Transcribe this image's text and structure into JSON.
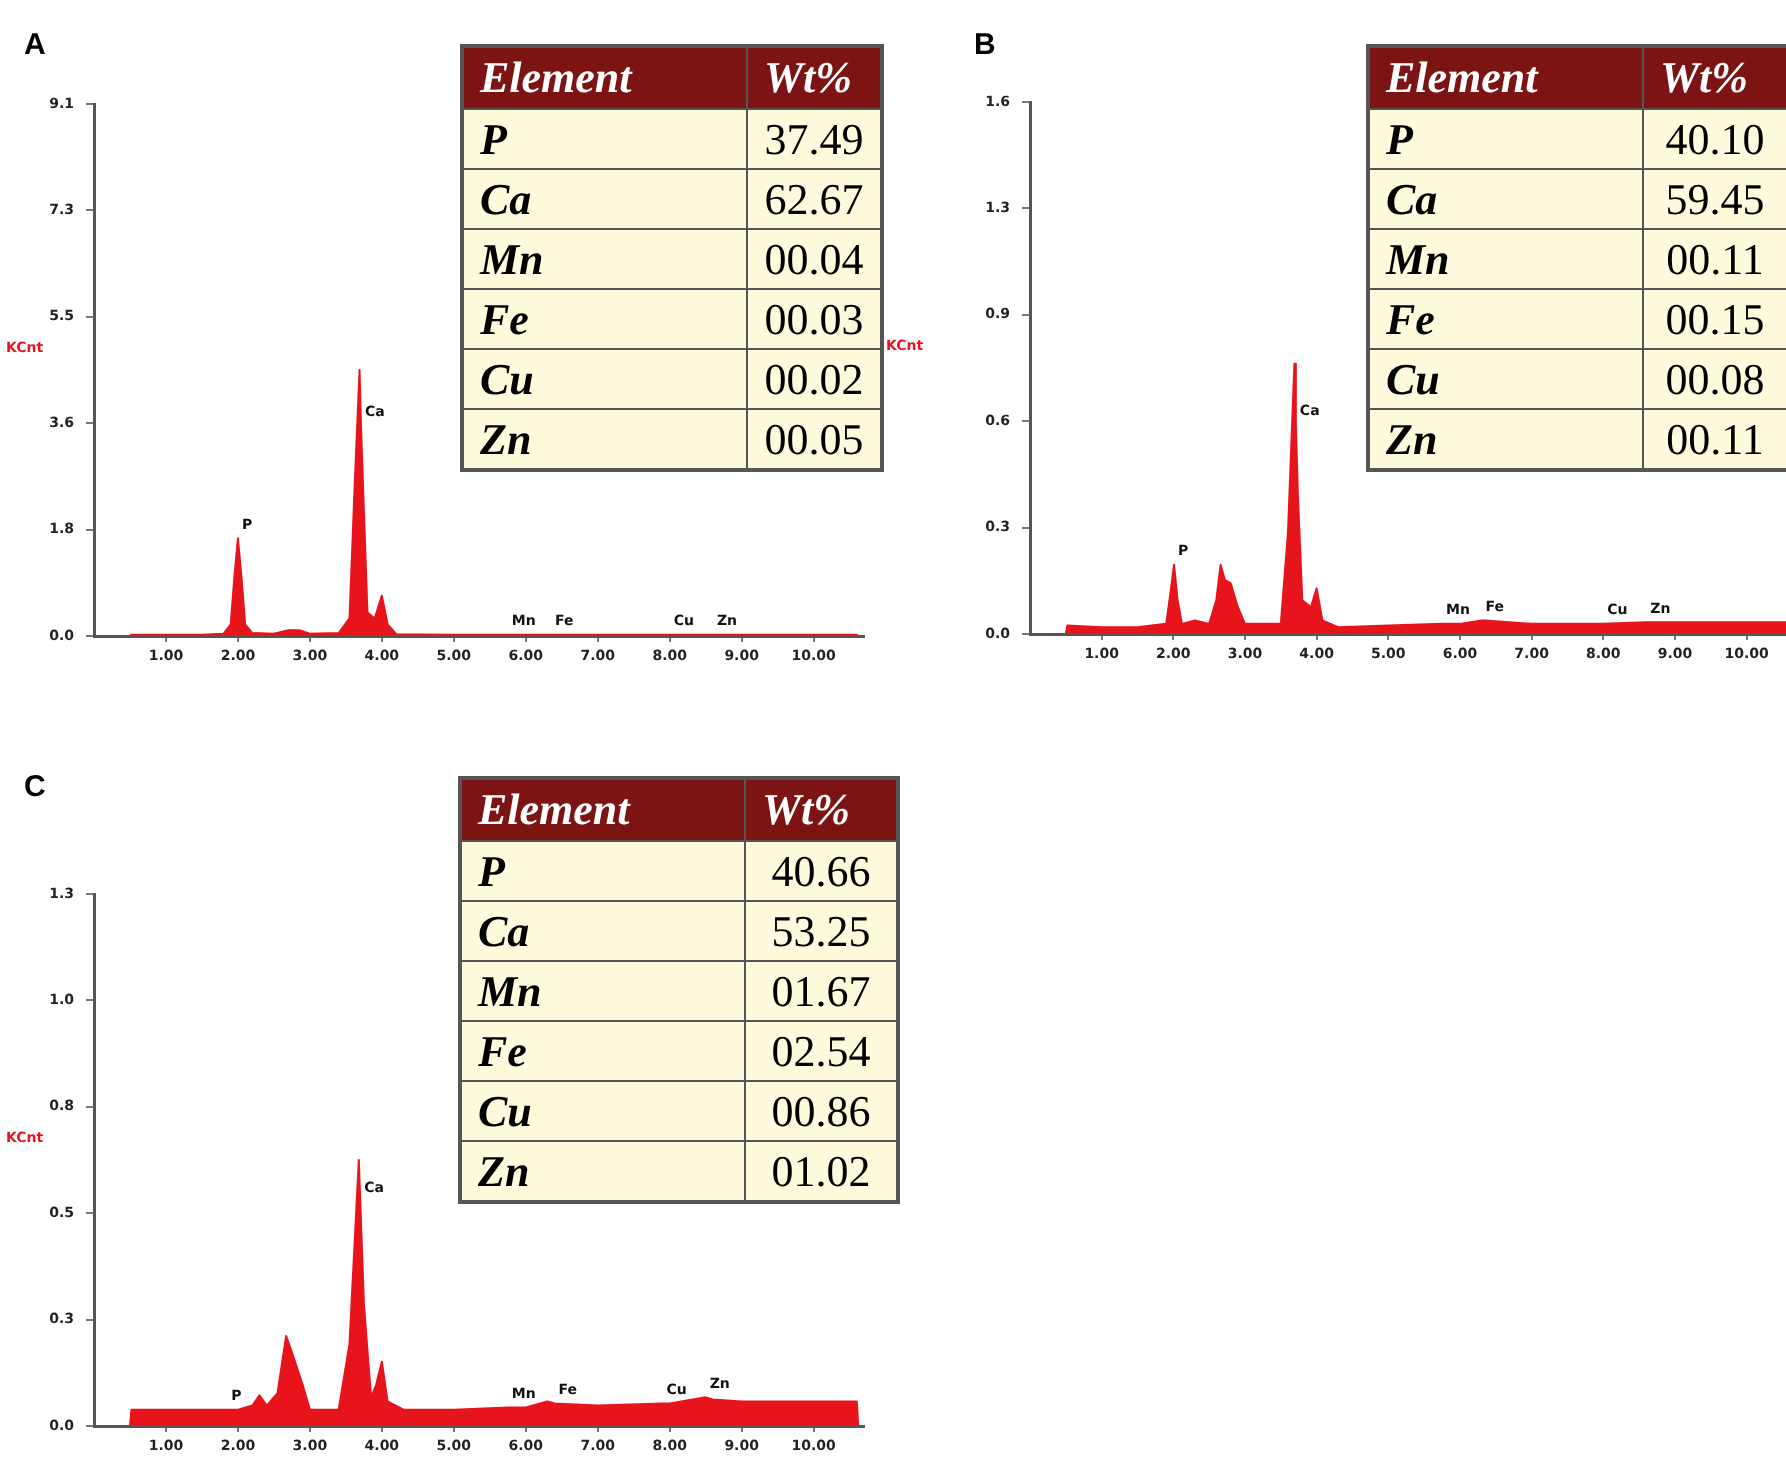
{
  "chart_data": [
    {
      "type": "area",
      "title": "A",
      "ylabel": "KCnt",
      "xlim": [
        0,
        10.7
      ],
      "ylim": [
        0,
        9.1
      ],
      "xticks": [
        {
          "value": 1,
          "label": "1.00"
        },
        {
          "value": 2,
          "label": "2.00"
        },
        {
          "value": 3,
          "label": "3.00"
        },
        {
          "value": 4,
          "label": "4.00"
        },
        {
          "value": 5,
          "label": "5.00"
        },
        {
          "value": 6,
          "label": "6.00"
        },
        {
          "value": 7,
          "label": "7.00"
        },
        {
          "value": 8,
          "label": "8.00"
        },
        {
          "value": 9,
          "label": "9.00"
        },
        {
          "value": 10,
          "label": "10.00"
        }
      ],
      "yticks": [
        {
          "value": 0,
          "label": "0.0"
        },
        {
          "value": 1.82,
          "label": "1.8"
        },
        {
          "value": 3.64,
          "label": "3.6"
        },
        {
          "value": 5.46,
          "label": "5.5"
        },
        {
          "value": 7.28,
          "label": "7.3"
        },
        {
          "value": 9.1,
          "label": "9.1"
        }
      ],
      "series": [
        {
          "color": "#e8141c",
          "x": [
            0.5,
            0.52,
            1.0,
            1.5,
            1.8,
            1.9,
            1.95,
            2.0,
            2.05,
            2.1,
            2.2,
            2.5,
            2.7,
            2.85,
            3.0,
            3.4,
            3.55,
            3.62,
            3.69,
            3.71,
            3.74,
            3.8,
            3.9,
            4.0,
            4.08,
            4.2,
            5,
            5.75,
            6.35,
            7,
            8,
            8.6,
            9,
            10,
            10.6,
            10.62
          ],
          "values": [
            0,
            0.02,
            0.02,
            0.02,
            0.04,
            0.2,
            1.0,
            1.67,
            1.0,
            0.2,
            0.05,
            0.04,
            0.1,
            0.1,
            0.04,
            0.05,
            0.3,
            2.5,
            4.55,
            3.6,
            2.5,
            0.4,
            0.3,
            0.69,
            0.2,
            0.03,
            0.02,
            0.02,
            0.02,
            0.02,
            0.02,
            0.02,
            0.02,
            0.02,
            0.02,
            0
          ]
        }
      ],
      "annotations": [
        {
          "text": "P",
          "x": 2.0,
          "y": 1.67
        },
        {
          "text": "Ca",
          "x": 3.71,
          "y": 3.6
        },
        {
          "text": "Mn",
          "x": 5.75,
          "y": 0.02
        },
        {
          "text": "Fe",
          "x": 6.35,
          "y": 0.02
        },
        {
          "text": "Cu",
          "x": 8.0,
          "y": 0.02
        },
        {
          "text": "Zn",
          "x": 8.6,
          "y": 0.02
        }
      ]
    },
    {
      "type": "other",
      "xlabel": "Element",
      "ylabel": "Wt%",
      "categories": [
        "P",
        "Ca",
        "Mn",
        "Fe",
        "Cu",
        "Zn"
      ],
      "value_labels": [
        "37.49",
        "62.67",
        "00.04",
        "00.03",
        "00.02",
        "00.05"
      ]
    },
    {
      "type": "area",
      "title": "B",
      "ylabel": "KCnt",
      "xlim": [
        0,
        10.55
      ],
      "ylim": [
        0,
        1.575
      ],
      "xticks": [
        {
          "value": 1,
          "label": "1.00"
        },
        {
          "value": 2,
          "label": "2.00"
        },
        {
          "value": 3,
          "label": "3.00"
        },
        {
          "value": 4,
          "label": "4.00"
        },
        {
          "value": 5,
          "label": "5.00"
        },
        {
          "value": 6,
          "label": "6.00"
        },
        {
          "value": 7,
          "label": "7.00"
        },
        {
          "value": 8,
          "label": "8.00"
        },
        {
          "value": 9,
          "label": "9.00"
        },
        {
          "value": 10,
          "label": "10.00"
        }
      ],
      "yticks": [
        {
          "value": 0,
          "label": "0.0"
        },
        {
          "value": 0.315,
          "label": "0.3"
        },
        {
          "value": 0.63,
          "label": "0.6"
        },
        {
          "value": 0.945,
          "label": "0.9"
        },
        {
          "value": 1.26,
          "label": "1.3"
        },
        {
          "value": 1.575,
          "label": "1.6"
        }
      ],
      "series": [
        {
          "color": "#e8141c",
          "x": [
            0.5,
            0.52,
            1.0,
            1.5,
            1.9,
            1.96,
            2.01,
            2.06,
            2.12,
            2.3,
            2.5,
            2.6,
            2.66,
            2.72,
            2.8,
            2.9,
            3.0,
            3.5,
            3.6,
            3.69,
            3.71,
            3.74,
            3.8,
            3.92,
            4.0,
            4.08,
            4.3,
            5,
            5.75,
            6,
            6.3,
            6.35,
            7,
            8,
            8.6,
            9,
            10,
            10.55
          ],
          "values": [
            0,
            0.025,
            0.02,
            0.02,
            0.03,
            0.12,
            0.205,
            0.1,
            0.03,
            0.04,
            0.03,
            0.1,
            0.205,
            0.16,
            0.15,
            0.08,
            0.03,
            0.03,
            0.3,
            0.8,
            0.62,
            0.4,
            0.1,
            0.08,
            0.135,
            0.04,
            0.02,
            0.025,
            0.03,
            0.03,
            0.04,
            0.04,
            0.03,
            0.03,
            0.035,
            0.035,
            0.035,
            0.035
          ]
        }
      ],
      "annotations": [
        {
          "text": "P",
          "x": 2.01,
          "y": 0.205
        },
        {
          "text": "Ca",
          "x": 3.71,
          "y": 0.62
        },
        {
          "text": "Mn",
          "x": 5.75,
          "y": 0.03
        },
        {
          "text": "Fe",
          "x": 6.3,
          "y": 0.04
        },
        {
          "text": "Cu",
          "x": 8.0,
          "y": 0.03
        },
        {
          "text": "Zn",
          "x": 8.6,
          "y": 0.035
        }
      ]
    },
    {
      "type": "other",
      "xlabel": "Element",
      "ylabel": "Wt%",
      "categories": [
        "P",
        "Ca",
        "Mn",
        "Fe",
        "Cu",
        "Zn"
      ],
      "value_labels": [
        "40.10",
        "59.45",
        "00.11",
        "00.15",
        "00.08",
        "00.11"
      ]
    },
    {
      "type": "area",
      "title": "C",
      "ylabel": "KCnt",
      "xlim": [
        0,
        10.7
      ],
      "ylim": [
        0,
        1.3
      ],
      "xticks": [
        {
          "value": 1,
          "label": "1.00"
        },
        {
          "value": 2,
          "label": "2.00"
        },
        {
          "value": 3,
          "label": "3.00"
        },
        {
          "value": 4,
          "label": "4.00"
        },
        {
          "value": 5,
          "label": "5.00"
        },
        {
          "value": 6,
          "label": "6.00"
        },
        {
          "value": 7,
          "label": "7.00"
        },
        {
          "value": 8,
          "label": "8.00"
        },
        {
          "value": 9,
          "label": "9.00"
        },
        {
          "value": 10,
          "label": "10.00"
        }
      ],
      "yticks": [
        {
          "value": 0,
          "label": "0.0"
        },
        {
          "value": 0.26,
          "label": "0.3"
        },
        {
          "value": 0.52,
          "label": "0.5"
        },
        {
          "value": 0.78,
          "label": "0.8"
        },
        {
          "value": 1.04,
          "label": "1.0"
        },
        {
          "value": 1.3,
          "label": "1.3"
        }
      ],
      "series": [
        {
          "color": "#e8141c",
          "x": [
            0.5,
            0.52,
            1.0,
            1.5,
            1.85,
            2.0,
            2.2,
            2.3,
            2.4,
            2.55,
            2.67,
            2.75,
            2.9,
            3.0,
            3.4,
            3.55,
            3.68,
            3.7,
            3.75,
            3.85,
            3.92,
            4.0,
            4.08,
            4.3,
            5,
            5.75,
            6,
            6.3,
            6.4,
            7,
            7.9,
            8,
            8.5,
            8.6,
            9,
            10,
            10.6,
            10.62
          ],
          "values": [
            0,
            0.04,
            0.04,
            0.04,
            0.04,
            0.04,
            0.05,
            0.075,
            0.05,
            0.08,
            0.22,
            0.18,
            0.1,
            0.04,
            0.04,
            0.2,
            0.65,
            0.55,
            0.3,
            0.07,
            0.1,
            0.157,
            0.06,
            0.04,
            0.04,
            0.045,
            0.045,
            0.06,
            0.055,
            0.05,
            0.055,
            0.055,
            0.07,
            0.065,
            0.06,
            0.06,
            0.06,
            0
          ]
        }
      ],
      "annotations": [
        {
          "text": "P",
          "x": 1.85,
          "y": 0.04
        },
        {
          "text": "Ca",
          "x": 3.7,
          "y": 0.55
        },
        {
          "text": "Mn",
          "x": 5.75,
          "y": 0.045
        },
        {
          "text": "Fe",
          "x": 6.4,
          "y": 0.055
        },
        {
          "text": "Cu",
          "x": 7.9,
          "y": 0.055
        },
        {
          "text": "Zn",
          "x": 8.5,
          "y": 0.07
        }
      ]
    },
    {
      "type": "other",
      "xlabel": "Element",
      "ylabel": "Wt%",
      "categories": [
        "P",
        "Ca",
        "Mn",
        "Fe",
        "Cu",
        "Zn"
      ],
      "value_labels": [
        "40.66",
        "53.25",
        "01.67",
        "02.54",
        "00.86",
        "01.02"
      ]
    }
  ]
}
